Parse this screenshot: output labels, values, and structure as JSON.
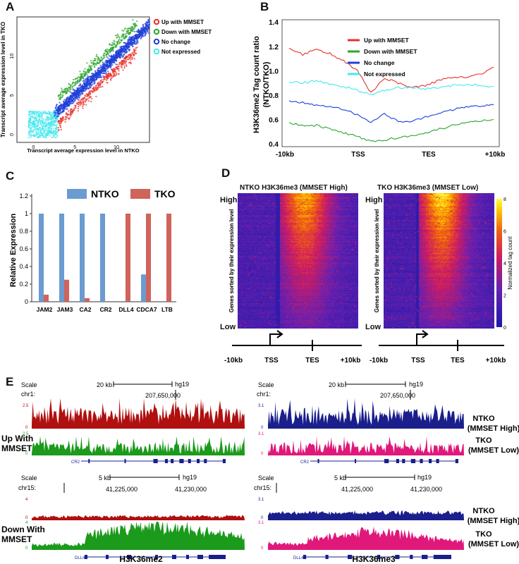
{
  "panels": {
    "a": {
      "label": "A",
      "xlabel": "Transcript average expression level in NTKO",
      "ylabel": "Transcript average expression level in TKO",
      "xticks": [
        "0",
        "5",
        "10"
      ],
      "yticks": [
        "0",
        "5",
        "10"
      ],
      "legend": [
        {
          "name": "Up with MMSET",
          "color": "#e8302b"
        },
        {
          "name": "Down with MMSET",
          "color": "#2ea52e"
        },
        {
          "name": "No change",
          "color": "#1f3fd8"
        },
        {
          "name": "Not expressed",
          "color": "#45e8ee"
        }
      ]
    },
    "b": {
      "label": "B",
      "ylabel": "H3K36me2 Tag count ratio (NTKO/TKO)",
      "ylabel_line1": "H3K36me2 Tag count ratio",
      "ylabel_line2": "(NTKO/TKO)",
      "yticks": [
        "0.4",
        "0.6",
        "0.8",
        "1.0",
        "1.2",
        "1.4"
      ],
      "xticks": [
        "-10kb",
        "TSS",
        "TES",
        "+10kb"
      ]
    },
    "c": {
      "label": "C",
      "ylabel": "Relative Expression",
      "yticks": [
        "0",
        "0.2",
        "0.4",
        "0.6",
        "0.8",
        "1",
        "1.2"
      ]
    },
    "d": {
      "label": "D",
      "title_left": "NTKO H3K36me3 (MMSET High)",
      "title_right": "TKO H3K36me3 (MMSET Low)",
      "high": "High",
      "low": "Low",
      "sorted_label": "Genes sorted by their expression level",
      "colorbar_label": "Normalized tag count",
      "colorbar_ticks": [
        "0",
        "2",
        "4",
        "6",
        "8"
      ],
      "axis_ticks": [
        "-10kb",
        "TSS",
        "TES",
        "+10kb"
      ]
    },
    "e": {
      "label": "E",
      "scale": "Scale",
      "top": {
        "row_label_line1": "Up With",
        "row_label_line2": "MMSET",
        "chr": "chr1:",
        "scale_kb": "20 kb",
        "genome": "hg19",
        "coord": "207,650,000",
        "gene": "CR2",
        "left_axis_top": [
          "2.5",
          "2.5"
        ],
        "right_axis_top": [
          "3.1",
          "3.1"
        ]
      },
      "bottom": {
        "row_label_line1": "Down With",
        "row_label_line2": "MMSET",
        "chr": "chr15:",
        "scale_kb": "5 kb",
        "genome": "hg19",
        "coord1": "41,225,000",
        "coord2": "41,230,000",
        "gene": "DLL4",
        "left_axis_top": [
          "4",
          "4"
        ],
        "right_axis_top": [
          "3.1",
          "3.1"
        ]
      },
      "zero": "0",
      "ntko_line1": "NTKO",
      "ntko_line2": "(MMSET High)",
      "tko_line1": "TKO",
      "tko_line2": "(MMSET Low)",
      "xlabel_left": "H3K36me2",
      "xlabel_right": "H3K36me3",
      "colors": {
        "ntko_me2": "#b01010",
        "tko_me2": "#1c9a1c",
        "ntko_me3": "#1a1f8c",
        "tko_me3": "#e0187a",
        "gene": "#1a1f8c"
      }
    }
  },
  "chart_data": [
    {
      "type": "scatter",
      "panel": "A",
      "xlabel": "Transcript average expression level in NTKO",
      "ylabel": "Transcript average expression level in TKO",
      "xlim": [
        -2,
        14
      ],
      "ylim": [
        -1,
        15
      ],
      "series": [
        {
          "name": "Up with MMSET",
          "color": "#e8302b"
        },
        {
          "name": "Down with MMSET",
          "color": "#2ea52e"
        },
        {
          "name": "No change",
          "color": "#1f3fd8"
        },
        {
          "name": "Not expressed",
          "color": "#45e8ee"
        }
      ]
    },
    {
      "type": "line",
      "panel": "B",
      "ylabel": "H3K36me2 Tag count ratio (NTKO/TKO)",
      "ylim": [
        0.4,
        1.4
      ],
      "x": [
        0,
        2,
        4,
        6,
        8,
        10,
        12,
        14,
        16,
        18,
        20,
        22,
        24,
        26,
        28,
        30
      ],
      "xticks": [
        "-10kb",
        "TSS",
        "TES",
        "+10kb"
      ],
      "series": [
        {
          "name": "Up with MMSET",
          "color": "#e8302b",
          "values": [
            1.19,
            1.13,
            1.18,
            1.14,
            1.08,
            1.0,
            0.82,
            0.94,
            0.9,
            0.86,
            0.88,
            0.92,
            0.95,
            0.95,
            0.97,
            1.03
          ]
        },
        {
          "name": "Down with MMSET",
          "color": "#2ea52e",
          "values": [
            0.57,
            0.55,
            0.55,
            0.52,
            0.49,
            0.46,
            0.42,
            0.43,
            0.45,
            0.47,
            0.49,
            0.52,
            0.55,
            0.58,
            0.59,
            0.6
          ]
        },
        {
          "name": "No change",
          "color": "#1f3fd8",
          "values": [
            0.75,
            0.74,
            0.72,
            0.71,
            0.68,
            0.64,
            0.57,
            0.65,
            0.58,
            0.59,
            0.62,
            0.65,
            0.68,
            0.7,
            0.71,
            0.72
          ]
        },
        {
          "name": "Not expressed",
          "color": "#45e8ee",
          "values": [
            0.91,
            0.9,
            0.92,
            0.89,
            0.87,
            0.84,
            0.8,
            0.84,
            0.86,
            0.86,
            0.85,
            0.86,
            0.88,
            0.89,
            0.88,
            0.87
          ]
        }
      ]
    },
    {
      "type": "bar",
      "panel": "C",
      "ylabel": "Relative Expression",
      "ylim": [
        0,
        1.2
      ],
      "categories": [
        "JAM2",
        "JAM3",
        "CA2",
        "CR2",
        "DLL4",
        "CDCA7",
        "LTB"
      ],
      "series": [
        {
          "name": "NTKO",
          "color": "#6a9bd1",
          "values": [
            1,
            1,
            1,
            1,
            0,
            0.31,
            0
          ]
        },
        {
          "name": "TKO",
          "color": "#d0635a",
          "values": [
            0.08,
            0.25,
            0.04,
            0,
            1,
            1,
            1
          ]
        }
      ]
    }
  ]
}
